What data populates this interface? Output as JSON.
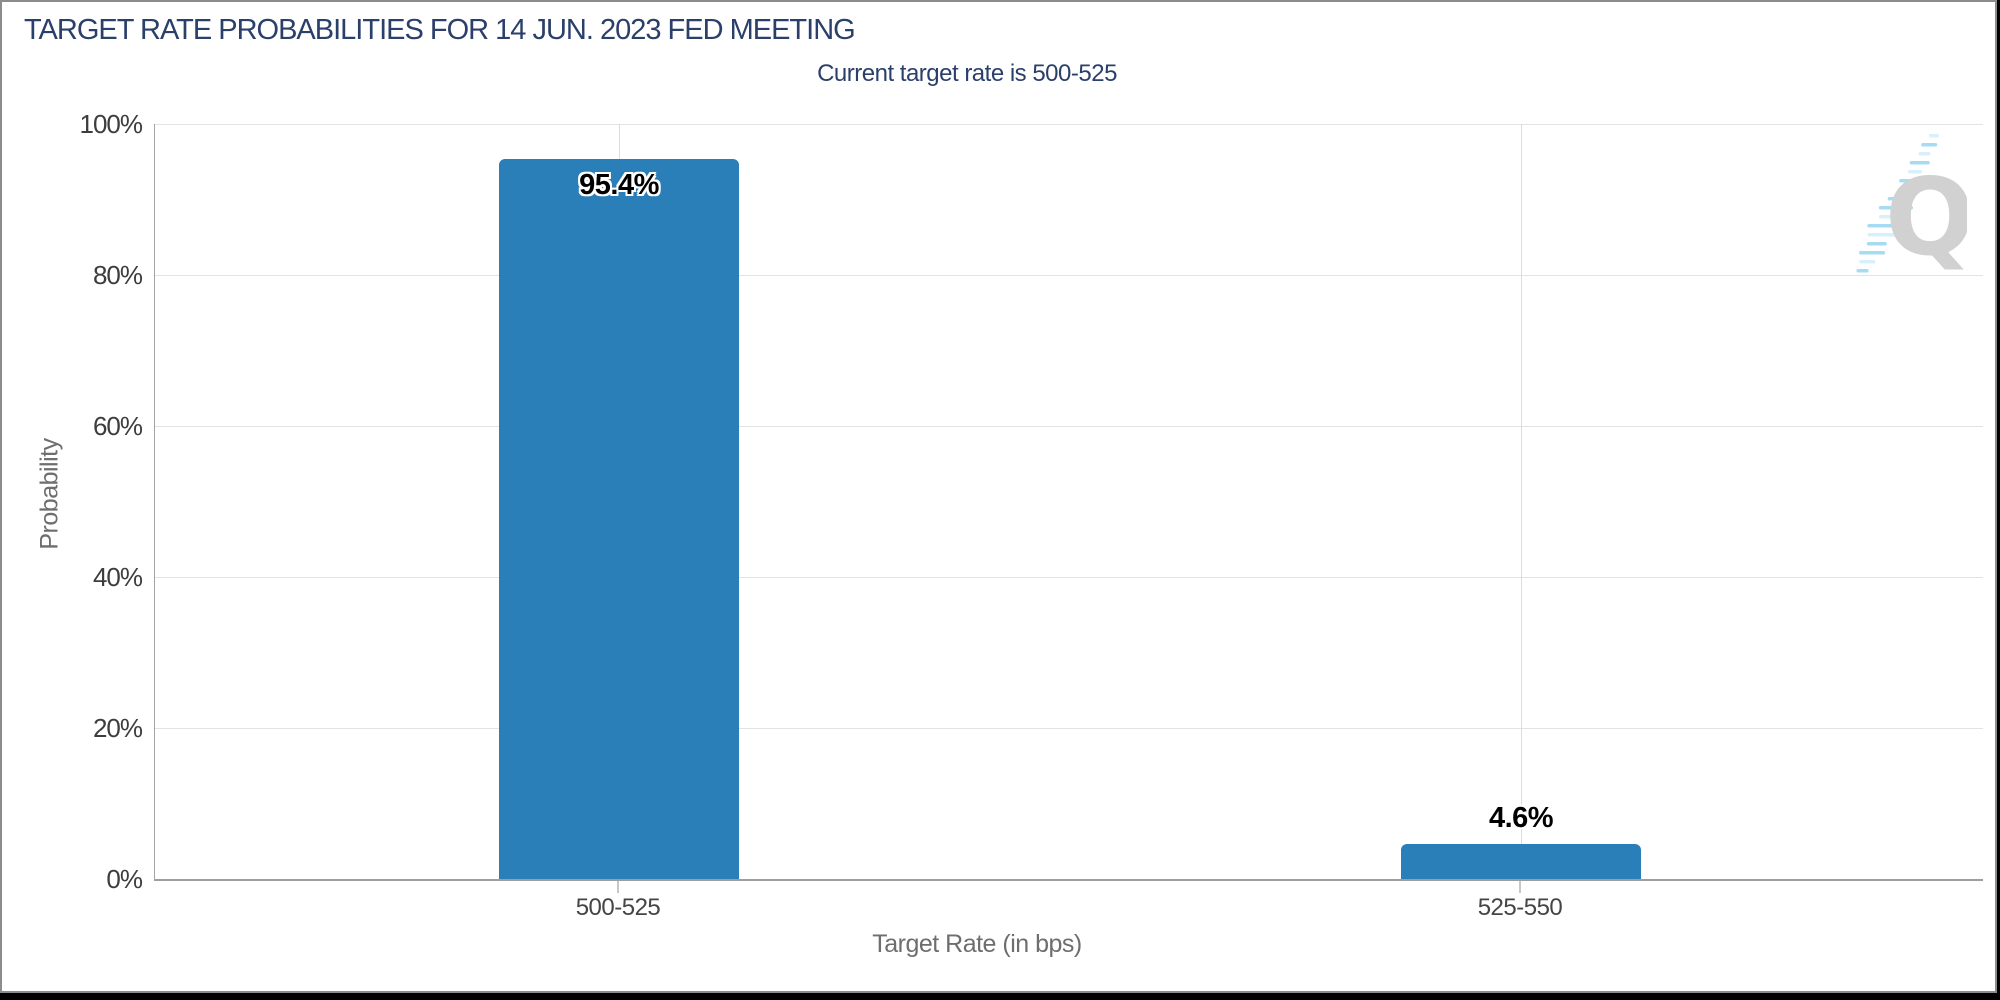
{
  "header": {
    "title": "TARGET RATE PROBABILITIES FOR 14 JUN. 2023 FED MEETING",
    "subtitle": "Current target rate is 500-525"
  },
  "chart_data": {
    "type": "bar",
    "title": "TARGET RATE PROBABILITIES FOR 14 JUN. 2023 FED MEETING",
    "subtitle": "Current target rate is 500-525",
    "categories": [
      "500-525",
      "525-550"
    ],
    "values": [
      95.4,
      4.6
    ],
    "value_labels": [
      "95.4%",
      "4.6%"
    ],
    "xlabel": "Target Rate (in bps)",
    "ylabel": "Probability",
    "ylim": [
      0,
      100
    ],
    "ytick_labels": [
      "0%",
      "20%",
      "40%",
      "60%",
      "80%",
      "100%"
    ],
    "grid": true,
    "legend_position": "none",
    "bar_color": "#2b7fb8"
  },
  "watermark": {
    "icon": "quikstrike-q-logo",
    "letter": "Q"
  },
  "colors": {
    "title_navy": "#2b3f6b",
    "bar_blue": "#2b7fb8",
    "axis_line": "#9e9e9e",
    "gridline_horizontal": "#e3e3e3",
    "gridline_vertical": "#dcdcdc",
    "ytick_text": "#3d3d3d",
    "xtick_text": "#454545",
    "axis_title_text": "#6e6e6e",
    "watermark_gray": "#cbcbcb",
    "watermark_blue": "#9bd7f3"
  }
}
